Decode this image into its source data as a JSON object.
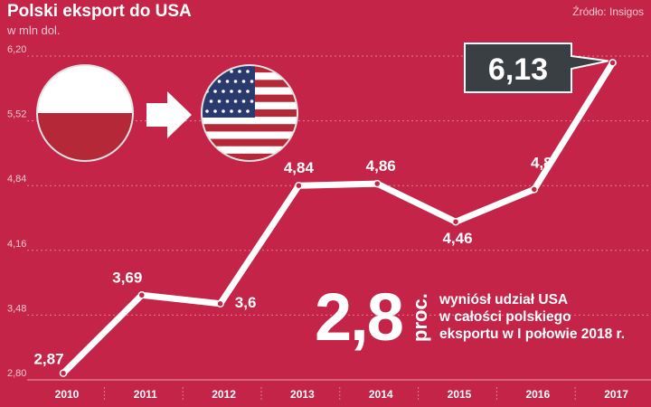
{
  "header": {
    "title": "Polski eksport do USA",
    "subtitle": "w mln dol.",
    "source": "Źródło: Insigos"
  },
  "callout": {
    "stat_value": "2,8",
    "stat_unit": "proc.",
    "description": "wyniósł udział USA\nw całości polskiego\neksportu w I połowie 2018 r."
  },
  "icons": [
    "poland-flag-icon",
    "arrow-right-icon",
    "usa-flag-icon"
  ],
  "colors": {
    "background": "#c42448",
    "line": "#ffffff",
    "label_box": "#3a3f44",
    "flag_red": "#b52838",
    "flag_blue": "#2b3a6e"
  },
  "chart_data": {
    "type": "line",
    "title": "Polski eksport do USA",
    "ylabel": "w mln dol.",
    "xlabel": "",
    "categories": [
      "2010",
      "2011",
      "2012",
      "2013",
      "2014",
      "2015",
      "2016",
      "2017"
    ],
    "series": [
      {
        "name": "Polski eksport do USA",
        "values": [
          2.87,
          3.69,
          3.6,
          4.84,
          4.86,
          4.46,
          4.8,
          6.13
        ]
      }
    ],
    "value_labels": [
      "2,87",
      "3,69",
      "3,6",
      "4,84",
      "4,86",
      "4,46",
      "4,8",
      "6,13"
    ],
    "highlight_index": 7,
    "y_ticks": [
      "2,80",
      "3,48",
      "4,16",
      "4,84",
      "5,52",
      "6,20"
    ],
    "y_tick_values": [
      2.8,
      3.48,
      4.16,
      4.84,
      5.52,
      6.2
    ],
    "ylim": [
      2.8,
      6.2
    ],
    "grid": true
  }
}
